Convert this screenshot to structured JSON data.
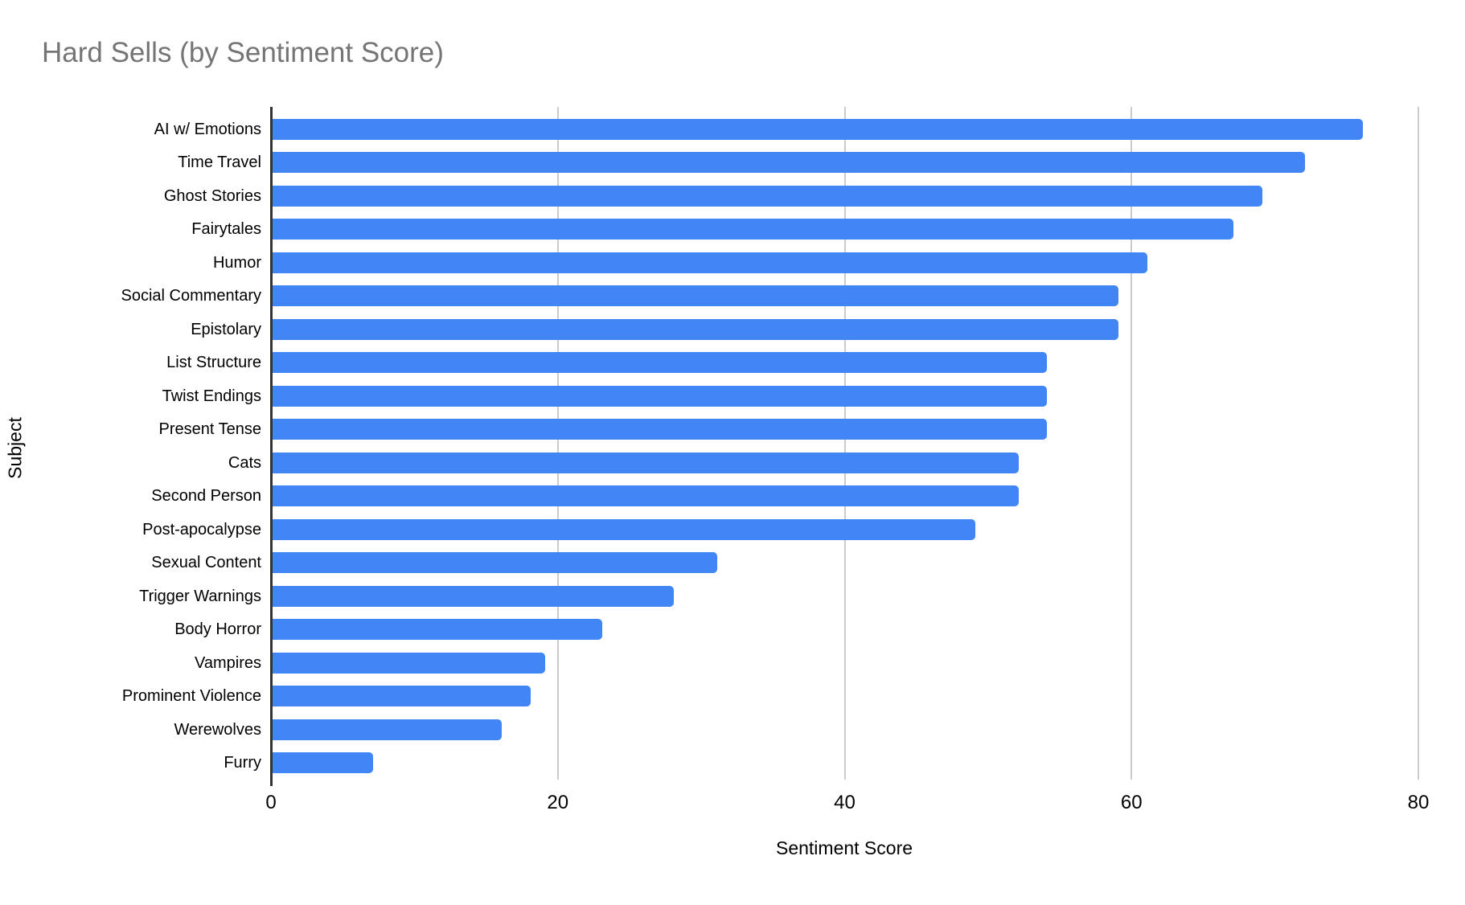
{
  "title": "Hard Sells (by Sentiment Score)",
  "colors": {
    "bar": "#4285f4",
    "title_text": "#757575",
    "axis_text": "#000000",
    "gridline": "#cccccc",
    "axis_line": "#333333",
    "background": "#ffffff"
  },
  "chart_data": {
    "type": "bar",
    "orientation": "horizontal",
    "title": "Hard Sells (by Sentiment Score)",
    "xlabel": "Sentiment Score",
    "ylabel": "Subject",
    "xlim": [
      0,
      80
    ],
    "xticks": [
      "0",
      "20",
      "40",
      "60",
      "80"
    ],
    "xtick_values": [
      0,
      20,
      40,
      60,
      80
    ],
    "grid": true,
    "legend": "none",
    "categories": [
      "AI w/ Emotions",
      "Time Travel",
      "Ghost Stories",
      "Fairytales",
      "Humor",
      "Social Commentary",
      "Epistolary",
      "List Structure",
      "Twist Endings",
      "Present Tense",
      "Cats",
      "Second Person",
      "Post-apocalypse",
      "Sexual Content",
      "Trigger Warnings",
      "Body Horror",
      "Vampires",
      "Prominent Violence",
      "Werewolves",
      "Furry"
    ],
    "values": [
      76,
      72,
      69,
      67,
      61,
      59,
      59,
      54,
      54,
      54,
      52,
      52,
      49,
      31,
      28,
      23,
      19,
      18,
      16,
      7
    ]
  }
}
